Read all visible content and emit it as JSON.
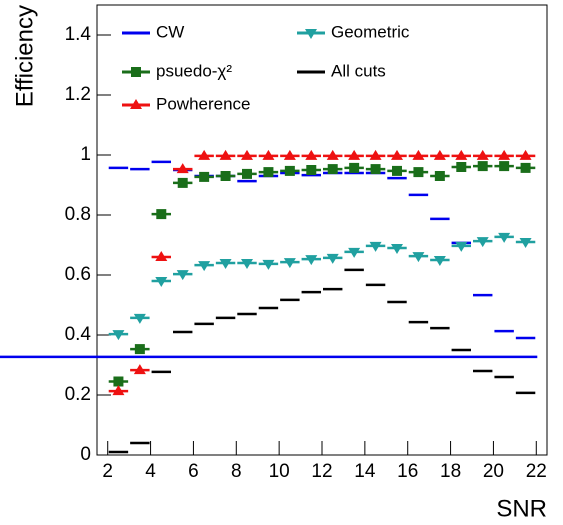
{
  "chart_data": {
    "type": "histogram",
    "x_label": "SNR",
    "y_label": "Efficiency",
    "bins": [
      2,
      3,
      4,
      5,
      6,
      7,
      8,
      9,
      10,
      11,
      12,
      13,
      14,
      15,
      16,
      17,
      18,
      19,
      20,
      21,
      22
    ],
    "xlim": [
      1.5,
      22.5
    ],
    "xticks": [
      2,
      4,
      6,
      8,
      10,
      12,
      14,
      16,
      18,
      20,
      22
    ],
    "ylim": [
      0,
      1.5
    ],
    "yticks": [
      0,
      0.2,
      0.4,
      0.6,
      0.8,
      1,
      1.2,
      1.4
    ],
    "series": [
      {
        "name": "CW",
        "color": "#0000ee",
        "marker": "none",
        "values": [
          0.957,
          0.953,
          0.977,
          0.95,
          0.93,
          0.93,
          0.913,
          0.93,
          0.94,
          0.933,
          0.94,
          0.94,
          0.94,
          0.923,
          0.867,
          0.787,
          0.707,
          0.533,
          0.413,
          0.39,
          0.327
        ]
      },
      {
        "name": "Geometric",
        "color": "#20a0a0",
        "marker": "triangle-down",
        "values": [
          0.403,
          0.457,
          0.58,
          0.603,
          0.633,
          0.64,
          0.64,
          0.637,
          0.643,
          0.653,
          0.657,
          0.677,
          0.697,
          0.69,
          0.663,
          0.65,
          0.697,
          0.713,
          0.727,
          0.71
        ]
      },
      {
        "name": "psuedo-χ²",
        "color": "#1a6e1a",
        "marker": "square",
        "values": [
          0.245,
          0.353,
          0.803,
          0.907,
          0.927,
          0.93,
          0.937,
          0.943,
          0.947,
          0.95,
          0.953,
          0.957,
          0.953,
          0.947,
          0.943,
          0.93,
          0.96,
          0.963,
          0.963,
          0.957
        ]
      },
      {
        "name": "All cuts",
        "color": "#000000",
        "marker": "none",
        "values": [
          0.01,
          0.04,
          0.277,
          0.41,
          0.437,
          0.457,
          0.47,
          0.49,
          0.517,
          0.543,
          0.553,
          0.617,
          0.567,
          0.51,
          0.443,
          0.423,
          0.35,
          0.28,
          0.26,
          0.207
        ]
      },
      {
        "name": "Powherence",
        "color": "#ee1111",
        "marker": "triangle-up",
        "values": [
          0.213,
          0.283,
          0.66,
          0.953,
          0.997,
          0.997,
          0.997,
          0.997,
          0.997,
          0.997,
          0.997,
          0.997,
          0.997,
          0.997,
          0.997,
          0.997,
          0.997,
          0.997,
          0.997,
          0.997
        ]
      }
    ]
  }
}
